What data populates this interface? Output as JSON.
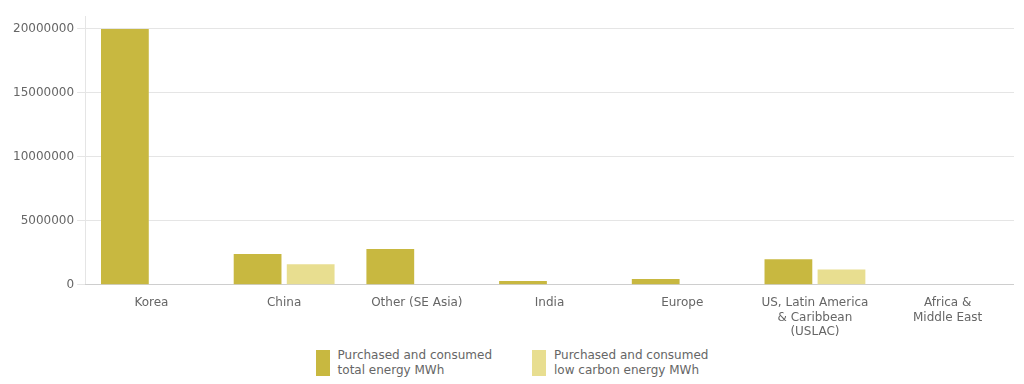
{
  "chart_data": {
    "type": "bar",
    "categories": [
      "Korea",
      "China",
      "Other (SE Asia)",
      "India",
      "Europe",
      "US, Latin America\n& Caribbean\n(USLAC)",
      "Africa &\nMiddle East"
    ],
    "series": [
      {
        "name": "Purchased and consumed\ntotal energy MWh",
        "color": "#C8B840",
        "values": [
          20000000,
          2400000,
          2800000,
          300000,
          450000,
          2000000,
          0
        ]
      },
      {
        "name": "Purchased and consumed\nlow carbon energy MWh",
        "color": "#E8DE90",
        "values": [
          0,
          1600000,
          0,
          0,
          0,
          1200000,
          0
        ]
      }
    ],
    "ylim": [
      0,
      21000000
    ],
    "yticks": [
      0,
      5000000,
      10000000,
      15000000,
      20000000
    ],
    "grid": true,
    "legend": "bottom"
  }
}
